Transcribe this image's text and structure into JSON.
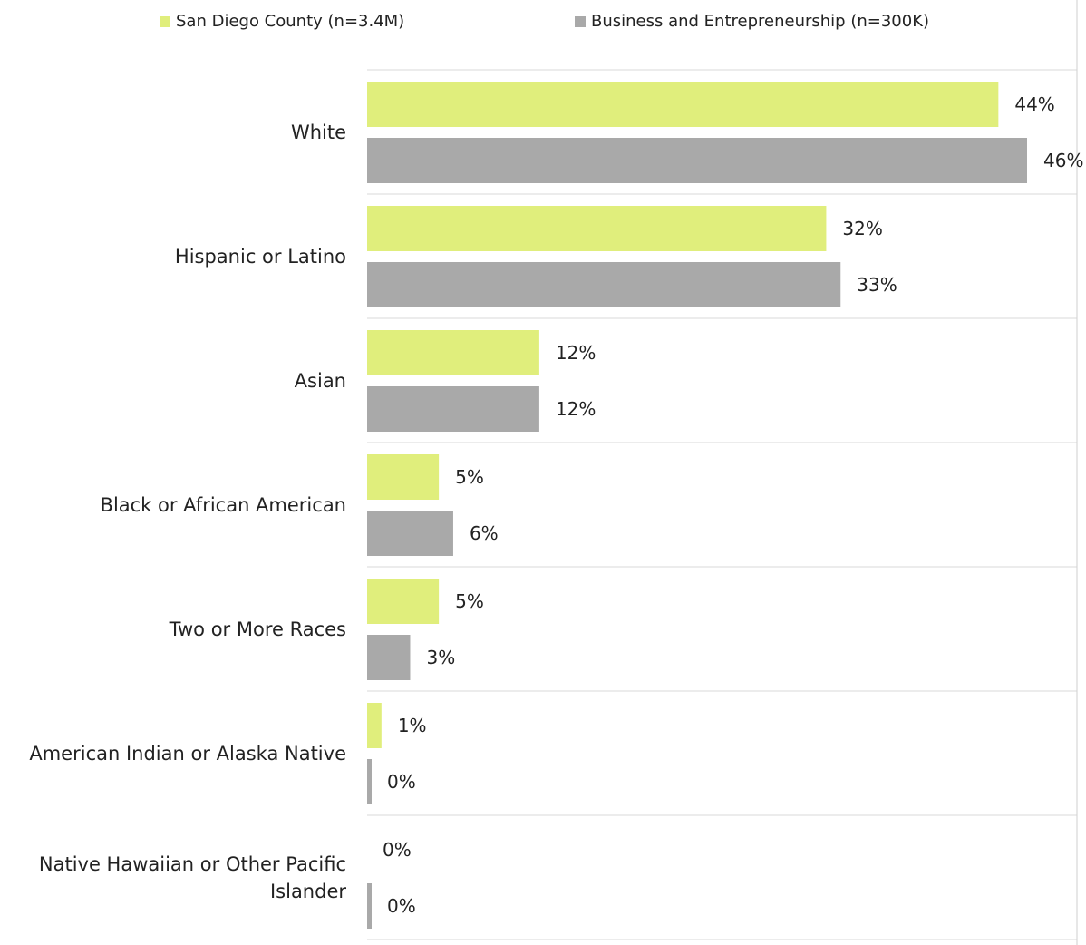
{
  "chart_data": {
    "type": "bar",
    "orientation": "horizontal",
    "categories": [
      "White",
      "Hispanic or Latino",
      "Asian",
      "Black or African American",
      "Two or More Races",
      "American Indian or Alaska Native",
      "Native Hawaiian or Other Pacific Islander"
    ],
    "series": [
      {
        "name": "San Diego County (n=3.4M)",
        "color": "#e0ee7c",
        "values": [
          44,
          32,
          12,
          5,
          5,
          1,
          0
        ],
        "labels": [
          "44%",
          "32%",
          "12%",
          "5%",
          "5%",
          "1%",
          "0%"
        ]
      },
      {
        "name": "Business and Entrepreneurship (n=300K)",
        "color": "#a9a9a9",
        "values": [
          46,
          33,
          12,
          6,
          3,
          0,
          0
        ],
        "labels": [
          "46%",
          "33%",
          "12%",
          "6%",
          "3%",
          "0%",
          "0%"
        ]
      }
    ],
    "xlim": [
      0,
      50
    ],
    "grid": true,
    "legend_position": "top"
  }
}
